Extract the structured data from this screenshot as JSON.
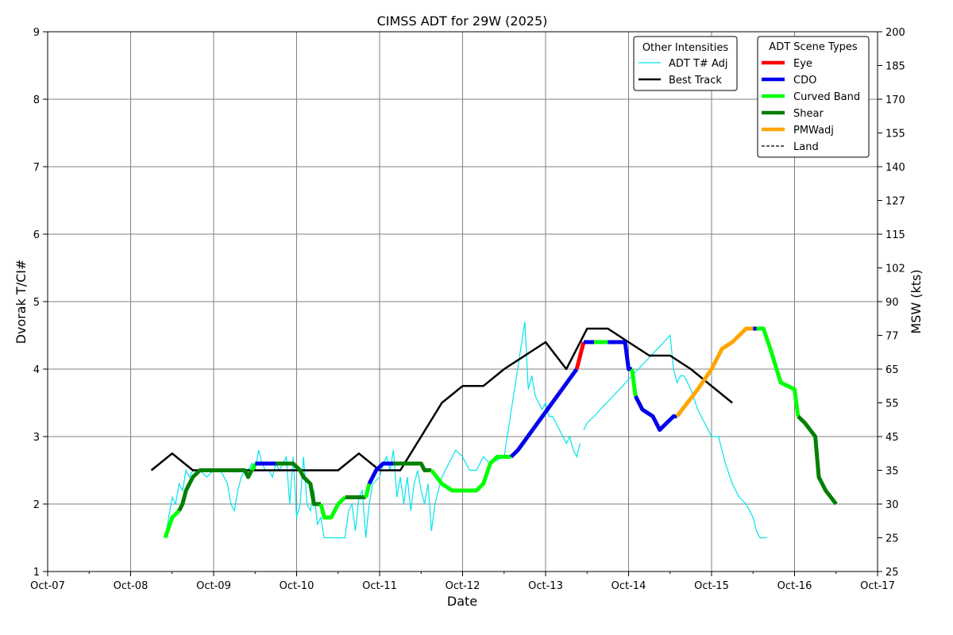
{
  "chart_data": {
    "type": "line",
    "title": "CIMSS ADT for 29W (2025)",
    "xlabel": "Date",
    "ylabel": "Dvorak T/CI#",
    "ylabel_right": "MSW (kts)",
    "x_axis_unit": "days",
    "xlim": [
      "2025-10-07",
      "2025-10-17"
    ],
    "ylim": [
      1,
      9
    ],
    "x_ticks": [
      "Oct-07",
      "Oct-08",
      "Oct-09",
      "Oct-10",
      "Oct-11",
      "Oct-12",
      "Oct-13",
      "Oct-14",
      "Oct-15",
      "Oct-16",
      "Oct-17"
    ],
    "y_ticks": [
      1,
      2,
      3,
      4,
      5,
      6,
      7,
      8,
      9
    ],
    "right_ticks": [
      {
        "t": 1.0,
        "label": "25"
      },
      {
        "t": 1.5,
        "label": "25"
      },
      {
        "t": 2.0,
        "label": "30"
      },
      {
        "t": 2.5,
        "label": "35"
      },
      {
        "t": 3.0,
        "label": "45"
      },
      {
        "t": 3.5,
        "label": "55"
      },
      {
        "t": 4.0,
        "label": "65"
      },
      {
        "t": 4.5,
        "label": "77"
      },
      {
        "t": 5.0,
        "label": "90"
      },
      {
        "t": 5.5,
        "label": "102"
      },
      {
        "t": 6.0,
        "label": "115"
      },
      {
        "t": 6.5,
        "label": "127"
      },
      {
        "t": 7.0,
        "label": "140"
      },
      {
        "t": 7.5,
        "label": "155"
      },
      {
        "t": 8.0,
        "label": "170"
      },
      {
        "t": 8.5,
        "label": "185"
      },
      {
        "t": 9.0,
        "label": "200"
      }
    ],
    "grid": true,
    "legend_other": {
      "title": "Other Intensities",
      "placement": "top-right",
      "entries": [
        {
          "name": "ADT T# Adj",
          "color": "#00e5ee",
          "style": "thin"
        },
        {
          "name": "Best Track",
          "color": "#000000",
          "style": "solid"
        }
      ]
    },
    "legend_scene": {
      "title": "ADT Scene Types",
      "placement": "top-right",
      "entries": [
        {
          "name": "Eye",
          "color": "#ff0000",
          "style": "thick"
        },
        {
          "name": "CDO",
          "color": "#0000ee",
          "style": "thick"
        },
        {
          "name": "Curved Band",
          "color": "#00ff00",
          "style": "thick"
        },
        {
          "name": "Shear",
          "color": "#008000",
          "style": "thick"
        },
        {
          "name": "PMWadj",
          "color": "#ffa500",
          "style": "thick"
        },
        {
          "name": "Land",
          "color": "#000000",
          "style": "dashed"
        }
      ]
    },
    "colors": {
      "Eye": "#ff0000",
      "CDO": "#0000ee",
      "Curved Band": "#00ff00",
      "Shear": "#008000",
      "PMWadj": "#ffa500",
      "ADT T# Adj": "#00e5ee",
      "Best Track": "#000000"
    },
    "best_track": [
      [
        "2025-10-08 06:00",
        2.5
      ],
      [
        "2025-10-08 12:00",
        2.75
      ],
      [
        "2025-10-08 18:00",
        2.5
      ],
      [
        "2025-10-09 00:00",
        2.5
      ],
      [
        "2025-10-09 06:00",
        2.5
      ],
      [
        "2025-10-09 12:00",
        2.5
      ],
      [
        "2025-10-09 18:00",
        2.5
      ],
      [
        "2025-10-10 00:00",
        2.5
      ],
      [
        "2025-10-10 06:00",
        2.5
      ],
      [
        "2025-10-10 12:00",
        2.5
      ],
      [
        "2025-10-10 18:00",
        2.75
      ],
      [
        "2025-10-11 00:00",
        2.5
      ],
      [
        "2025-10-11 06:00",
        2.5
      ],
      [
        "2025-10-11 12:00",
        3.0
      ],
      [
        "2025-10-11 18:00",
        3.5
      ],
      [
        "2025-10-12 00:00",
        3.75
      ],
      [
        "2025-10-12 06:00",
        3.75
      ],
      [
        "2025-10-12 12:00",
        4.0
      ],
      [
        "2025-10-12 18:00",
        4.2
      ],
      [
        "2025-10-13 00:00",
        4.4
      ],
      [
        "2025-10-13 06:00",
        4.0
      ],
      [
        "2025-10-13 12:00",
        4.6
      ],
      [
        "2025-10-13 18:00",
        4.6
      ],
      [
        "2025-10-14 00:00",
        4.4
      ],
      [
        "2025-10-14 06:00",
        4.2
      ],
      [
        "2025-10-14 12:00",
        4.2
      ],
      [
        "2025-10-14 18:00",
        4.0
      ],
      [
        "2025-10-15 00:00",
        3.75
      ],
      [
        "2025-10-15 06:00",
        3.5
      ]
    ],
    "adt_raw": [
      [
        "2025-10-08 10:00",
        1.5
      ],
      [
        "2025-10-08 11:00",
        1.8
      ],
      [
        "2025-10-08 12:00",
        2.1
      ],
      [
        "2025-10-08 13:00",
        2.0
      ],
      [
        "2025-10-08 14:00",
        2.3
      ],
      [
        "2025-10-08 15:00",
        2.2
      ],
      [
        "2025-10-08 16:00",
        2.5
      ],
      [
        "2025-10-08 17:00",
        2.4
      ],
      [
        "2025-10-08 18:00",
        2.5
      ],
      [
        "2025-10-08 20:00",
        2.5
      ],
      [
        "2025-10-08 22:00",
        2.4
      ],
      [
        "2025-10-09 00:00",
        2.5
      ],
      [
        "2025-10-09 02:00",
        2.5
      ],
      [
        "2025-10-09 04:00",
        2.3
      ],
      [
        "2025-10-09 05:00",
        2.0
      ],
      [
        "2025-10-09 06:00",
        1.9
      ],
      [
        "2025-10-09 07:00",
        2.2
      ],
      [
        "2025-10-09 08:00",
        2.4
      ],
      [
        "2025-10-09 09:00",
        2.5
      ],
      [
        "2025-10-09 10:00",
        2.5
      ],
      [
        "2025-10-09 11:00",
        2.6
      ],
      [
        "2025-10-09 12:00",
        2.5
      ],
      [
        "2025-10-09 13:00",
        2.8
      ],
      [
        "2025-10-09 14:00",
        2.6
      ],
      [
        "2025-10-09 15:00",
        2.5
      ],
      [
        "2025-10-09 16:00",
        2.5
      ],
      [
        "2025-10-09 17:00",
        2.4
      ],
      [
        "2025-10-09 18:00",
        2.6
      ],
      [
        "2025-10-09 19:00",
        2.5
      ],
      [
        "2025-10-09 20:00",
        2.6
      ],
      [
        "2025-10-09 21:00",
        2.7
      ],
      [
        "2025-10-09 22:00",
        2.0
      ],
      [
        "2025-10-09 23:00",
        2.7
      ],
      [
        "2025-10-10 00:00",
        1.8
      ],
      [
        "2025-10-10 01:00",
        2.0
      ],
      [
        "2025-10-10 02:00",
        2.7
      ],
      [
        "2025-10-10 03:00",
        2.0
      ],
      [
        "2025-10-10 04:00",
        1.9
      ],
      [
        "2025-10-10 05:00",
        2.2
      ],
      [
        "2025-10-10 06:00",
        1.7
      ],
      [
        "2025-10-10 07:00",
        1.8
      ],
      [
        "2025-10-10 08:00",
        1.5
      ],
      [
        "2025-10-10 10:00",
        1.5
      ],
      [
        "2025-10-10 12:00",
        1.5
      ],
      [
        "2025-10-10 14:00",
        1.5
      ],
      [
        "2025-10-10 15:00",
        1.9
      ],
      [
        "2025-10-10 16:00",
        2.0
      ],
      [
        "2025-10-10 17:00",
        1.6
      ],
      [
        "2025-10-10 18:00",
        2.1
      ],
      [
        "2025-10-10 19:00",
        2.2
      ],
      [
        "2025-10-10 20:00",
        1.5
      ],
      [
        "2025-10-10 21:00",
        2.0
      ],
      [
        "2025-10-10 22:00",
        2.3
      ],
      [
        "2025-10-11 00:00",
        2.4
      ],
      [
        "2025-10-11 01:00",
        2.6
      ],
      [
        "2025-10-11 02:00",
        2.7
      ],
      [
        "2025-10-11 03:00",
        2.5
      ],
      [
        "2025-10-11 04:00",
        2.8
      ],
      [
        "2025-10-11 05:00",
        2.1
      ],
      [
        "2025-10-11 06:00",
        2.4
      ],
      [
        "2025-10-11 07:00",
        2.0
      ],
      [
        "2025-10-11 08:00",
        2.4
      ],
      [
        "2025-10-11 09:00",
        1.9
      ],
      [
        "2025-10-11 10:00",
        2.3
      ],
      [
        "2025-10-11 11:00",
        2.5
      ],
      [
        "2025-10-11 12:00",
        2.2
      ],
      [
        "2025-10-11 13:00",
        2.0
      ],
      [
        "2025-10-11 14:00",
        2.3
      ],
      [
        "2025-10-11 15:00",
        1.6
      ],
      [
        "2025-10-11 16:00",
        2.0
      ],
      [
        "2025-10-11 17:00",
        2.2
      ],
      [
        "2025-10-11 18:00",
        2.4
      ],
      [
        "2025-10-11 20:00",
        2.6
      ],
      [
        "2025-10-11 22:00",
        2.8
      ],
      [
        "2025-10-12 00:00",
        2.7
      ],
      [
        "2025-10-12 02:00",
        2.5
      ],
      [
        "2025-10-12 04:00",
        2.5
      ],
      [
        "2025-10-12 06:00",
        2.7
      ],
      [
        "2025-10-12 08:00",
        2.6
      ],
      [
        "2025-10-12 12:00",
        2.7
      ],
      [
        "2025-10-12 18:00",
        4.7
      ],
      [
        "2025-10-12 19:00",
        3.7
      ],
      [
        "2025-10-12 20:00",
        3.9
      ],
      [
        "2025-10-12 21:00",
        3.6
      ],
      [
        "2025-10-12 22:00",
        3.5
      ],
      [
        "2025-10-12 23:00",
        3.4
      ],
      [
        "2025-10-13 00:00",
        3.5
      ],
      [
        "2025-10-13 01:00",
        3.3
      ],
      [
        "2025-10-13 02:00",
        3.3
      ],
      [
        "2025-10-13 03:00",
        3.2
      ],
      [
        "2025-10-13 04:00",
        3.1
      ],
      [
        "2025-10-13 05:00",
        3.0
      ],
      [
        "2025-10-13 06:00",
        2.9
      ],
      [
        "2025-10-13 07:00",
        3.0
      ],
      [
        "2025-10-13 08:00",
        2.8
      ],
      [
        "2025-10-13 09:00",
        2.7
      ],
      [
        "2025-10-13 10:00",
        2.9
      ],
      [
        "2025-10-13 11:00",
        3.1
      ],
      [
        "2025-10-13 12:00",
        3.2
      ],
      [
        "2025-10-13 14:00",
        3.3
      ],
      [
        "2025-10-14 12:00",
        4.5
      ],
      [
        "2025-10-14 13:00",
        4.0
      ],
      [
        "2025-10-14 14:00",
        3.8
      ],
      [
        "2025-10-14 15:00",
        3.9
      ],
      [
        "2025-10-14 16:00",
        3.9
      ],
      [
        "2025-10-14 18:00",
        3.7
      ],
      [
        "2025-10-14 20:00",
        3.4
      ],
      [
        "2025-10-14 22:00",
        3.2
      ],
      [
        "2025-10-15 00:00",
        3.0
      ],
      [
        "2025-10-15 02:00",
        3.0
      ],
      [
        "2025-10-15 04:00",
        2.6
      ],
      [
        "2025-10-15 06:00",
        2.3
      ],
      [
        "2025-10-15 08:00",
        2.1
      ],
      [
        "2025-10-15 10:00",
        2.0
      ],
      [
        "2025-10-15 12:00",
        1.8
      ],
      [
        "2025-10-15 13:00",
        1.6
      ],
      [
        "2025-10-15 14:00",
        1.5
      ],
      [
        "2025-10-15 16:00",
        1.5
      ]
    ],
    "adt_scene": [
      {
        "type": "Curved Band",
        "points": [
          [
            "2025-10-08 10:00",
            1.5
          ],
          [
            "2025-10-08 12:00",
            1.8
          ],
          [
            "2025-10-08 14:00",
            1.9
          ]
        ]
      },
      {
        "type": "Shear",
        "points": [
          [
            "2025-10-08 14:00",
            1.9
          ],
          [
            "2025-10-08 15:00",
            2.0
          ],
          [
            "2025-10-08 16:00",
            2.2
          ],
          [
            "2025-10-08 18:00",
            2.4
          ],
          [
            "2025-10-08 20:00",
            2.5
          ],
          [
            "2025-10-09 00:00",
            2.5
          ],
          [
            "2025-10-09 06:00",
            2.5
          ],
          [
            "2025-10-09 09:00",
            2.5
          ],
          [
            "2025-10-09 10:00",
            2.4
          ],
          [
            "2025-10-09 11:00",
            2.5
          ]
        ]
      },
      {
        "type": "Curved Band",
        "points": [
          [
            "2025-10-09 11:00",
            2.5
          ],
          [
            "2025-10-09 12:00",
            2.6
          ]
        ]
      },
      {
        "type": "CDO",
        "points": [
          [
            "2025-10-09 12:00",
            2.6
          ],
          [
            "2025-10-09 18:00",
            2.6
          ]
        ]
      },
      {
        "type": "Shear",
        "points": [
          [
            "2025-10-09 18:00",
            2.6
          ],
          [
            "2025-10-09 23:00",
            2.6
          ],
          [
            "2025-10-10 01:00",
            2.5
          ],
          [
            "2025-10-10 02:00",
            2.4
          ],
          [
            "2025-10-10 04:00",
            2.3
          ],
          [
            "2025-10-10 05:00",
            2.0
          ],
          [
            "2025-10-10 07:00",
            2.0
          ]
        ]
      },
      {
        "type": "Curved Band",
        "points": [
          [
            "2025-10-10 07:00",
            2.0
          ],
          [
            "2025-10-10 08:00",
            1.8
          ],
          [
            "2025-10-10 10:00",
            1.8
          ],
          [
            "2025-10-10 12:00",
            2.0
          ],
          [
            "2025-10-10 14:00",
            2.1
          ]
        ]
      },
      {
        "type": "Shear",
        "points": [
          [
            "2025-10-10 14:00",
            2.1
          ],
          [
            "2025-10-10 20:00",
            2.1
          ]
        ]
      },
      {
        "type": "Curved Band",
        "points": [
          [
            "2025-10-10 20:00",
            2.1
          ],
          [
            "2025-10-10 21:00",
            2.3
          ]
        ]
      },
      {
        "type": "CDO",
        "points": [
          [
            "2025-10-10 21:00",
            2.3
          ],
          [
            "2025-10-10 23:00",
            2.5
          ],
          [
            "2025-10-11 01:00",
            2.6
          ],
          [
            "2025-10-11 04:00",
            2.6
          ]
        ]
      },
      {
        "type": "Shear",
        "points": [
          [
            "2025-10-11 04:00",
            2.6
          ],
          [
            "2025-10-11 12:00",
            2.6
          ],
          [
            "2025-10-11 13:00",
            2.5
          ],
          [
            "2025-10-11 15:00",
            2.5
          ]
        ]
      },
      {
        "type": "Curved Band",
        "points": [
          [
            "2025-10-11 15:00",
            2.5
          ],
          [
            "2025-10-11 18:00",
            2.3
          ],
          [
            "2025-10-11 21:00",
            2.2
          ],
          [
            "2025-10-12 04:00",
            2.2
          ],
          [
            "2025-10-12 06:00",
            2.3
          ],
          [
            "2025-10-12 08:00",
            2.6
          ],
          [
            "2025-10-12 10:00",
            2.7
          ],
          [
            "2025-10-12 14:00",
            2.7
          ]
        ]
      },
      {
        "type": "CDO",
        "points": [
          [
            "2025-10-12 14:00",
            2.7
          ],
          [
            "2025-10-12 16:00",
            2.8
          ],
          [
            "2025-10-13 09:00",
            4.0
          ]
        ]
      },
      {
        "type": "Eye",
        "points": [
          [
            "2025-10-13 09:00",
            4.0
          ],
          [
            "2025-10-13 11:00",
            4.4
          ]
        ]
      },
      {
        "type": "CDO",
        "points": [
          [
            "2025-10-13 11:00",
            4.4
          ],
          [
            "2025-10-13 14:00",
            4.4
          ]
        ]
      },
      {
        "type": "Curved Band",
        "points": [
          [
            "2025-10-13 14:00",
            4.4
          ],
          [
            "2025-10-13 18:00",
            4.4
          ]
        ]
      },
      {
        "type": "CDO",
        "points": [
          [
            "2025-10-13 18:00",
            4.4
          ],
          [
            "2025-10-13 23:00",
            4.4
          ],
          [
            "2025-10-14 00:00",
            4.0
          ],
          [
            "2025-10-14 01:00",
            4.0
          ]
        ]
      },
      {
        "type": "Curved Band",
        "points": [
          [
            "2025-10-14 01:00",
            4.0
          ],
          [
            "2025-10-14 02:00",
            3.6
          ]
        ]
      },
      {
        "type": "CDO",
        "points": [
          [
            "2025-10-14 02:00",
            3.6
          ],
          [
            "2025-10-14 04:00",
            3.4
          ],
          [
            "2025-10-14 07:00",
            3.3
          ],
          [
            "2025-10-14 09:00",
            3.1
          ],
          [
            "2025-10-14 11:00",
            3.2
          ],
          [
            "2025-10-14 13:00",
            3.3
          ],
          [
            "2025-10-14 14:00",
            3.3
          ]
        ]
      },
      {
        "type": "PMWadj",
        "points": [
          [
            "2025-10-14 14:00",
            3.3
          ],
          [
            "2025-10-14 17:00",
            3.5
          ],
          [
            "2025-10-14 20:00",
            3.7
          ],
          [
            "2025-10-15 00:00",
            4.0
          ],
          [
            "2025-10-15 03:00",
            4.3
          ],
          [
            "2025-10-15 06:00",
            4.4
          ],
          [
            "2025-10-15 08:00",
            4.5
          ],
          [
            "2025-10-15 10:00",
            4.6
          ],
          [
            "2025-10-15 12:00",
            4.6
          ]
        ]
      },
      {
        "type": "CDO",
        "points": [
          [
            "2025-10-15 12:00",
            4.6
          ],
          [
            "2025-10-15 13:00",
            4.6
          ]
        ]
      },
      {
        "type": "Curved Band",
        "points": [
          [
            "2025-10-15 13:00",
            4.6
          ],
          [
            "2025-10-15 15:00",
            4.6
          ],
          [
            "2025-10-15 17:00",
            4.3
          ],
          [
            "2025-10-15 20:00",
            3.8
          ],
          [
            "2025-10-16 00:00",
            3.7
          ],
          [
            "2025-10-16 01:00",
            3.3
          ]
        ]
      },
      {
        "type": "Shear",
        "points": [
          [
            "2025-10-16 01:00",
            3.3
          ],
          [
            "2025-10-16 03:00",
            3.2
          ],
          [
            "2025-10-16 06:00",
            3.0
          ],
          [
            "2025-10-16 07:00",
            2.4
          ],
          [
            "2025-10-16 09:00",
            2.2
          ],
          [
            "2025-10-16 12:00",
            2.0
          ]
        ]
      }
    ]
  }
}
